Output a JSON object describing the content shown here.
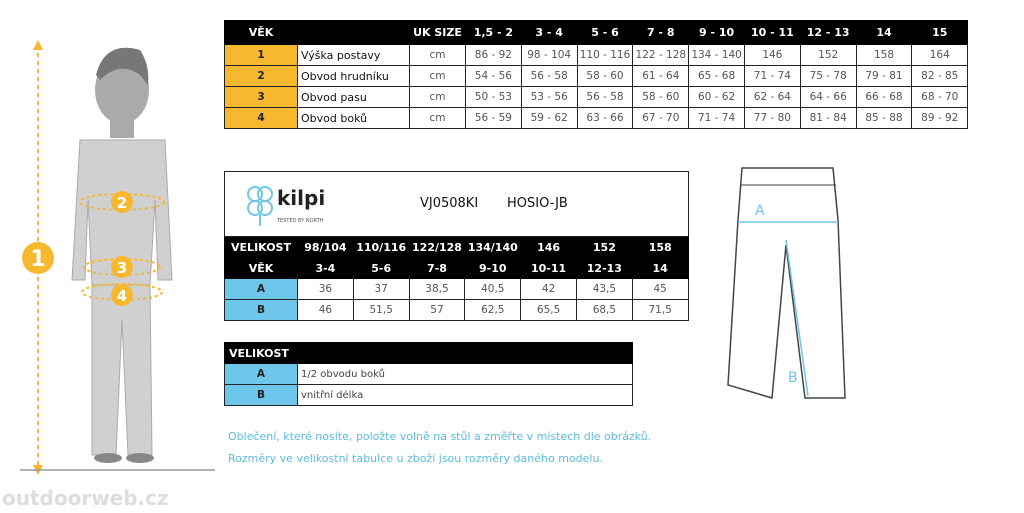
{
  "size_table": {
    "header": [
      "VĚK",
      "",
      "UK SIZE",
      "1,5 - 2",
      "3 - 4",
      "5 - 6",
      "7 - 8",
      "9 - 10",
      "10 - 11",
      "12 - 13",
      "14",
      "15"
    ],
    "rows": [
      [
        "1",
        "Výška postavy",
        "cm",
        "86 - 92",
        "98 - 104",
        "110 - 116",
        "122 - 128",
        "134 - 140",
        "146",
        "152",
        "158",
        "164"
      ],
      [
        "2",
        "Obvod hrudníku",
        "cm",
        "54 - 56",
        "56 - 58",
        "58 - 60",
        "61 - 64",
        "65 - 68",
        "71 - 74",
        "75 - 78",
        "79 - 81",
        "82 - 85"
      ],
      [
        "3",
        "Obvod pasu",
        "cm",
        "50 - 53",
        "53 - 56",
        "56 - 58",
        "58 - 60",
        "60 - 62",
        "62 - 64",
        "64 - 66",
        "66 - 68",
        "68 - 70"
      ],
      [
        "4",
        "Obvod boků",
        "cm",
        "56 - 59",
        "59 - 62",
        "63 - 66",
        "67 - 70",
        "71 - 74",
        "77 - 80",
        "81 - 84",
        "85 - 88",
        "89 - 92"
      ]
    ]
  },
  "product_table": {
    "logo": {
      "name": "kilpi",
      "tagline": "TESTED BY NORTH"
    },
    "code": "VJ0508KI",
    "model": "HOSIO-JB",
    "size_row": [
      "VELIKOST",
      "98/104",
      "110/116",
      "122/128",
      "134/140",
      "146",
      "152",
      "158"
    ],
    "age_row": [
      "VĚK",
      "3-4",
      "5-6",
      "7-8",
      "9-10",
      "10-11",
      "12-13",
      "14"
    ],
    "rows": [
      [
        "A",
        "36",
        "37",
        "38,5",
        "40,5",
        "42",
        "43,5",
        "45"
      ],
      [
        "B",
        "46",
        "51,5",
        "57",
        "62,5",
        "65,5",
        "68,5",
        "71,5"
      ]
    ]
  },
  "legend_table": {
    "header": "VELIKOST",
    "rows": [
      [
        "A",
        "1/2 obvodu boků"
      ],
      [
        "B",
        "vnitřní délka"
      ]
    ]
  },
  "figure": {
    "markers": [
      "1",
      "2",
      "3",
      "4"
    ],
    "pants_labels": [
      "A",
      "B"
    ]
  },
  "notes": [
    "Oblečení, které nosíte, položte volně na stůl a změřte v místech dle obrázků.",
    "Rozměry ve velikostní tabulce u zboží jsou rozměry daného modelu."
  ],
  "watermark": "outdoorweb.cz",
  "colors": {
    "yellow": "#f7b72e",
    "blue": "#6ec6ea",
    "note_text": "#5bbbe0"
  }
}
